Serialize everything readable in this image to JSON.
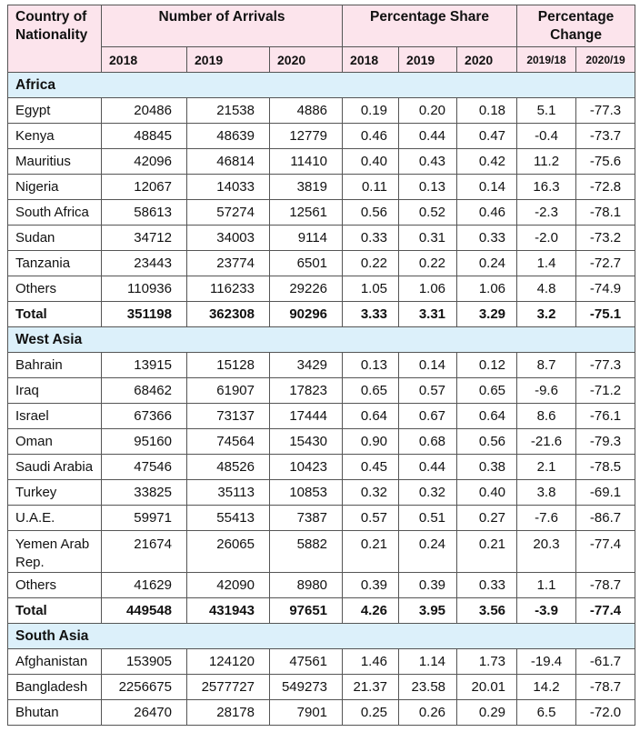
{
  "header": {
    "country": "Country of Nationality",
    "arrivals": "Number of Arrivals",
    "share": "Percentage Share",
    "change": "Percentage Change",
    "years": [
      "2018",
      "2019",
      "2020"
    ],
    "share_years": [
      "2018",
      "2019",
      "2020"
    ],
    "change_periods": [
      "2019/18",
      "2020/19"
    ]
  },
  "regions": [
    {
      "name": "Africa",
      "rows": [
        [
          "Egypt",
          "20486",
          "21538",
          "4886",
          "0.19",
          "0.20",
          "0.18",
          "5.1",
          "-77.3"
        ],
        [
          "Kenya",
          "48845",
          "48639",
          "12779",
          "0.46",
          "0.44",
          "0.47",
          "-0.4",
          "-73.7"
        ],
        [
          "Mauritius",
          "42096",
          "46814",
          "11410",
          "0.40",
          "0.43",
          "0.42",
          "11.2",
          "-75.6"
        ],
        [
          "Nigeria",
          "12067",
          "14033",
          "3819",
          "0.11",
          "0.13",
          "0.14",
          "16.3",
          "-72.8"
        ],
        [
          "South Africa",
          "58613",
          "57274",
          "12561",
          "0.56",
          "0.52",
          "0.46",
          "-2.3",
          "-78.1"
        ],
        [
          "Sudan",
          "34712",
          "34003",
          "9114",
          "0.33",
          "0.31",
          "0.33",
          "-2.0",
          "-73.2"
        ],
        [
          "Tanzania",
          "23443",
          "23774",
          "6501",
          "0.22",
          "0.22",
          "0.24",
          "1.4",
          "-72.7"
        ],
        [
          "Others",
          "110936",
          "116233",
          "29226",
          "1.05",
          "1.06",
          "1.06",
          "4.8",
          "-74.9"
        ]
      ],
      "total": [
        "Total",
        "351198",
        "362308",
        "90296",
        "3.33",
        "3.31",
        "3.29",
        "3.2",
        "-75.1"
      ]
    },
    {
      "name": "West Asia",
      "rows": [
        [
          "Bahrain",
          "13915",
          "15128",
          "3429",
          "0.13",
          "0.14",
          "0.12",
          "8.7",
          "-77.3"
        ],
        [
          "Iraq",
          "68462",
          "61907",
          "17823",
          "0.65",
          "0.57",
          "0.65",
          "-9.6",
          "-71.2"
        ],
        [
          "Israel",
          "67366",
          "73137",
          "17444",
          "0.64",
          "0.67",
          "0.64",
          "8.6",
          "-76.1"
        ],
        [
          "Oman",
          "95160",
          "74564",
          "15430",
          "0.90",
          "0.68",
          "0.56",
          "-21.6",
          "-79.3"
        ],
        [
          "Saudi Arabia",
          "47546",
          "48526",
          "10423",
          "0.45",
          "0.44",
          "0.38",
          "2.1",
          "-78.5"
        ],
        [
          "Turkey",
          "33825",
          "35113",
          "10853",
          "0.32",
          "0.32",
          "0.40",
          "3.8",
          "-69.1"
        ],
        [
          "U.A.E.",
          "59971",
          "55413",
          "7387",
          "0.57",
          "0.51",
          "0.27",
          "-7.6",
          "-86.7"
        ],
        [
          "Yemen Arab Rep.",
          "21674",
          "26065",
          "5882",
          "0.21",
          "0.24",
          "0.21",
          "20.3",
          "-77.4"
        ],
        [
          "Others",
          "41629",
          "42090",
          "8980",
          "0.39",
          "0.39",
          "0.33",
          "1.1",
          "-78.7"
        ]
      ],
      "total": [
        "Total",
        "449548",
        "431943",
        "97651",
        "4.26",
        "3.95",
        "3.56",
        "-3.9",
        "-77.4"
      ]
    },
    {
      "name": "South Asia",
      "rows": [
        [
          "Afghanistan",
          "153905",
          "124120",
          "47561",
          "1.46",
          "1.14",
          "1.73",
          "-19.4",
          "-61.7"
        ],
        [
          "Bangladesh",
          "2256675",
          "2577727",
          "549273",
          "21.37",
          "23.58",
          "20.01",
          "14.2",
          "-78.7"
        ],
        [
          "Bhutan",
          "26470",
          "28178",
          "7901",
          "0.25",
          "0.26",
          "0.29",
          "6.5",
          "-72.0"
        ]
      ]
    }
  ]
}
